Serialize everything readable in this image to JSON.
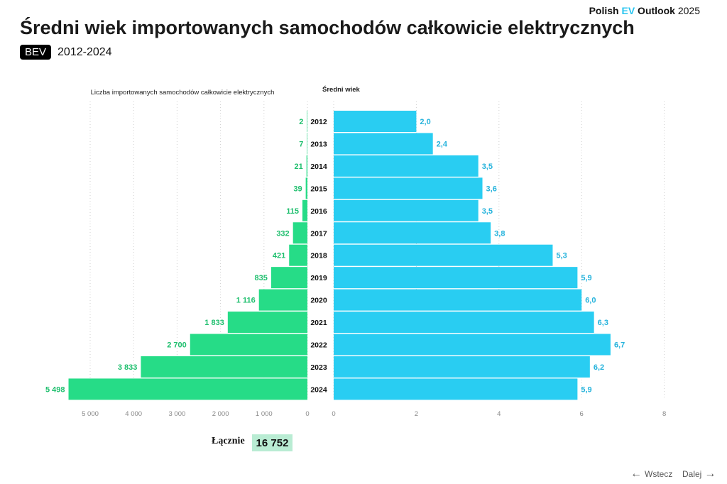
{
  "brand": {
    "part1": "Polish ",
    "ev": "EV",
    "part2": " Outlook",
    "year": " 2025"
  },
  "title": "Średni wiek importowanych samochodów całkowicie elektrycznych",
  "badge": "BEV",
  "period": "2012-2024",
  "total": {
    "label": "Łącznie",
    "value": "16 752"
  },
  "nav": {
    "back": "Wstecz",
    "next": "Dalej"
  },
  "colors": {
    "count": "#26dc87",
    "age": "#29cdf2",
    "count_label": "#1fbf6e",
    "age_label": "#25b3dc"
  },
  "chart_data": {
    "type": "bar",
    "categories": [
      "2012",
      "2013",
      "2014",
      "2015",
      "2016",
      "2017",
      "2018",
      "2019",
      "2020",
      "2021",
      "2022",
      "2023",
      "2024"
    ],
    "series": [
      {
        "name": "Liczba importowanych samochodów całkowicie elektrycznych",
        "values": [
          2,
          7,
          21,
          39,
          115,
          332,
          421,
          835,
          1116,
          1833,
          2700,
          3833,
          5498
        ],
        "labels": [
          "2",
          "7",
          "21",
          "39",
          "115",
          "332",
          "421",
          "835",
          "1 116",
          "1 833",
          "2 700",
          "3 833",
          "5 498"
        ]
      },
      {
        "name": "Średni wiek",
        "values": [
          2.0,
          2.4,
          3.5,
          3.6,
          3.5,
          3.8,
          5.3,
          5.9,
          6.0,
          6.3,
          6.7,
          6.2,
          5.9
        ],
        "labels": [
          "2,0",
          "2,4",
          "3,5",
          "3,6",
          "3,5",
          "3,8",
          "5,3",
          "5,9",
          "6,0",
          "6,3",
          "6,7",
          "6,2",
          "5,9"
        ]
      }
    ],
    "left_axis": {
      "ticks": [
        5000,
        4000,
        3000,
        2000,
        1000,
        0
      ],
      "tick_labels": [
        "5 000",
        "4 000",
        "3 000",
        "2 000",
        "1 000",
        "0"
      ],
      "range": [
        0,
        5500
      ]
    },
    "right_axis": {
      "ticks": [
        0,
        2,
        4,
        6,
        8
      ],
      "tick_labels": [
        "0",
        "2",
        "4",
        "6",
        "8"
      ],
      "range": [
        0,
        8
      ]
    },
    "grid": true
  }
}
